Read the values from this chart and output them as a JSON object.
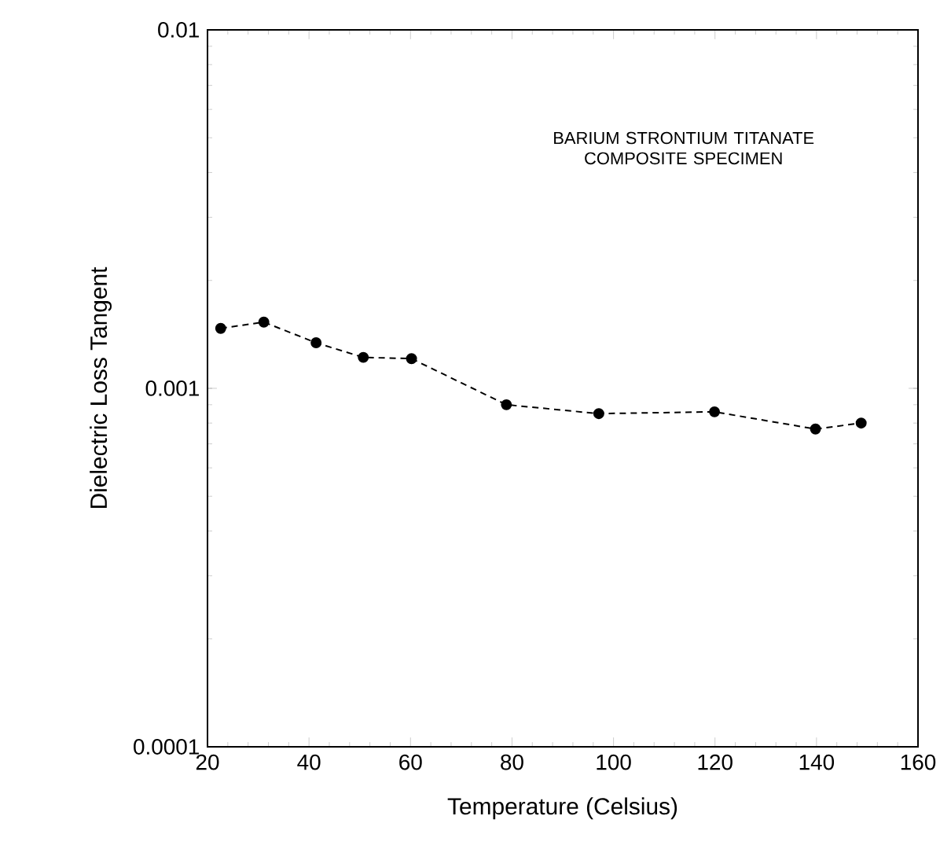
{
  "chart_data": {
    "type": "line",
    "xlabel": "Temperature (Celsius)",
    "ylabel": "Dielectric Loss Tangent",
    "annotations": [
      "BARIUM STRONTIUM TITANATE COMPOSITE SPECIMEN"
    ],
    "x": [
      22.6,
      31.1,
      41.4,
      50.7,
      60.2,
      78.9,
      97.1,
      119.9,
      139.8,
      148.8
    ],
    "series": [
      {
        "color": "#000000",
        "values": [
          0.00147,
          0.00153,
          0.00134,
          0.00122,
          0.00121,
          0.0009,
          0.00085,
          0.00086,
          0.00077,
          0.0008
        ]
      }
    ],
    "xlim": [
      20,
      160
    ],
    "xticks": [
      20,
      40,
      60,
      80,
      100,
      120,
      140,
      160
    ],
    "ylim": [
      0.0001,
      0.01
    ],
    "yticks": [
      0.0001,
      0.001,
      0.01
    ],
    "log": "y",
    "grid": false,
    "legend": false,
    "marker": "circle",
    "line_style": "dashed"
  }
}
